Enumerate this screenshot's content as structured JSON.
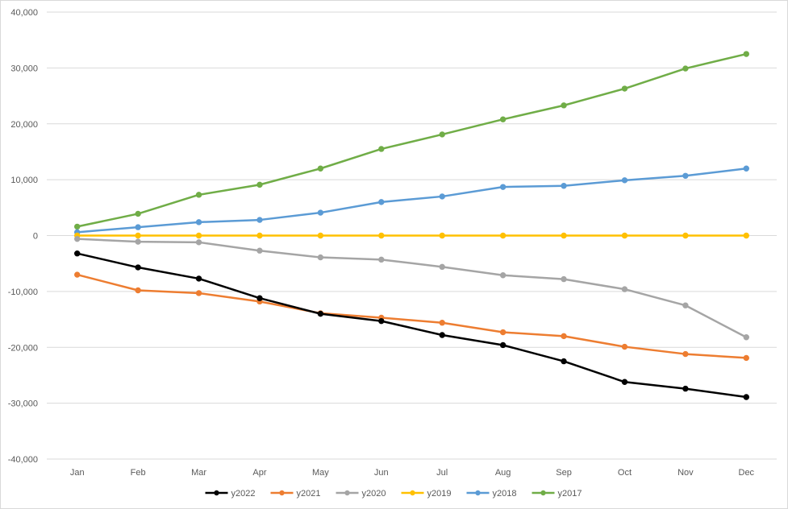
{
  "chart_data": {
    "type": "line",
    "categories": [
      "Jan",
      "Feb",
      "Mar",
      "Apr",
      "May",
      "Jun",
      "Jul",
      "Aug",
      "Sep",
      "Oct",
      "Nov",
      "Dec"
    ],
    "ylim": [
      -40000,
      40000
    ],
    "y_ticks": [
      40000,
      30000,
      20000,
      10000,
      0,
      -10000,
      -20000,
      -30000,
      -40000
    ],
    "y_tick_labels": [
      "40,000",
      "30,000",
      "20,000",
      "10,000",
      "0",
      "-10,000",
      "-20,000",
      "-30,000",
      "-40,000"
    ],
    "grid": true,
    "legend_position": "bottom",
    "series": [
      {
        "name": "y2022",
        "color": "#000000",
        "values": [
          -3200,
          -5700,
          -7700,
          -11200,
          -14000,
          -15300,
          -17800,
          -19600,
          -22500,
          -26200,
          -27400,
          -28900
        ]
      },
      {
        "name": "y2021",
        "color": "#ED7D31",
        "values": [
          -7000,
          -9800,
          -10300,
          -11800,
          -13900,
          -14700,
          -15600,
          -17300,
          -18000,
          -19900,
          -21200,
          -21900
        ]
      },
      {
        "name": "y2020",
        "color": "#A5A5A5",
        "values": [
          -600,
          -1100,
          -1200,
          -2700,
          -3900,
          -4300,
          -5600,
          -7100,
          -7800,
          -9600,
          -12500,
          -18200
        ]
      },
      {
        "name": "y2019",
        "color": "#FFC000",
        "values": [
          0,
          0,
          0,
          0,
          0,
          0,
          0,
          0,
          0,
          0,
          0,
          0
        ]
      },
      {
        "name": "y2018",
        "color": "#5B9BD5",
        "values": [
          600,
          1500,
          2400,
          2800,
          4100,
          6000,
          7000,
          8700,
          8900,
          9900,
          10700,
          12000
        ]
      },
      {
        "name": "y2017",
        "color": "#70AD47",
        "values": [
          1600,
          3900,
          7300,
          9100,
          12000,
          15500,
          18100,
          20800,
          23300,
          26300,
          29900,
          32500
        ]
      }
    ]
  }
}
